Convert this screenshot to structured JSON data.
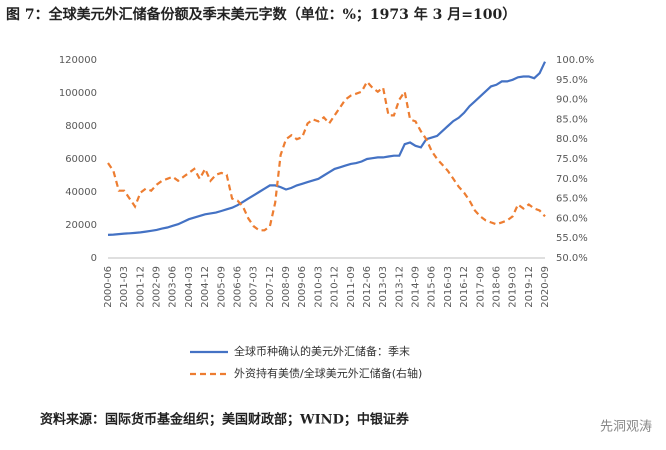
{
  "chart_data": {
    "type": "line",
    "title": "图 7：全球美元外汇储备份额及季末美元字数（单位：%；1973 年 3 月=100）",
    "source": "资料来源：国际货币基金组织；美国财政部；WIND；中银证券",
    "watermark": "先洞观涛",
    "categories": [
      "2000-06",
      null,
      null,
      "2001-03",
      null,
      null,
      "2001-12",
      null,
      null,
      "2002-09",
      null,
      null,
      "2003-06",
      null,
      null,
      "2004-03",
      null,
      null,
      "2004-12",
      null,
      null,
      "2005-09",
      null,
      null,
      "2006-06",
      null,
      null,
      "2007-03",
      null,
      null,
      "2007-12",
      null,
      null,
      "2008-09",
      null,
      null,
      "2009-06",
      null,
      null,
      "2010-03",
      null,
      null,
      "2010-12",
      null,
      null,
      "2011-09",
      null,
      null,
      "2012-06",
      null,
      null,
      "2013-03",
      null,
      null,
      "2013-12",
      null,
      null,
      "2014-09",
      null,
      null,
      "2015-06",
      null,
      null,
      "2016-03",
      null,
      null,
      "2016-12",
      null,
      null,
      "2017-09",
      null,
      null,
      "2018-06",
      null,
      null,
      "2019-03",
      null,
      null,
      "2019-12",
      null,
      null,
      "2020-09"
    ],
    "series": [
      {
        "name": "全球币种确认的美元外汇储备：季末",
        "color": "#4472c4",
        "dash": false,
        "values": [
          14000,
          14200,
          14500,
          14800,
          15000,
          15200,
          15500,
          16000,
          16500,
          17000,
          17800,
          18500,
          19500,
          20500,
          22000,
          23500,
          24500,
          25500,
          26500,
          27000,
          27500,
          28500,
          29500,
          30500,
          32000,
          34000,
          36000,
          38000,
          40000,
          42000,
          44000,
          44000,
          43000,
          41500,
          42500,
          44000,
          45000,
          46000,
          47000,
          48000,
          50000,
          52000,
          54000,
          55000,
          56000,
          57000,
          57500,
          58500,
          60000,
          60500,
          61000,
          61000,
          61500,
          62000,
          62000,
          69000,
          70000,
          68000,
          67000,
          72000,
          73000,
          74000,
          77000,
          80000,
          83000,
          85000,
          88000,
          92000,
          95000,
          98000,
          101000,
          104000,
          105000,
          107000,
          107000,
          108000,
          109500,
          110000,
          110000,
          109000,
          112000,
          119000
        ]
      },
      {
        "name": "外资持有美债/全球美元外汇储备(右轴)",
        "color": "#ed7d31",
        "dash": true,
        "axis": "y2",
        "values": [
          74,
          72,
          67,
          67,
          65,
          63,
          66.5,
          67.5,
          67,
          68.5,
          69.5,
          70,
          70.5,
          69.5,
          70.5,
          71.5,
          72.5,
          70,
          72.5,
          69.5,
          71,
          71.5,
          71,
          65,
          64.5,
          63,
          60,
          58,
          57,
          57,
          58,
          64,
          76,
          80,
          81,
          80,
          80.5,
          84,
          85,
          84.5,
          85.5,
          84,
          86,
          88,
          90,
          91,
          91.5,
          92,
          94.5,
          93,
          92,
          93,
          86,
          86,
          90,
          92,
          85,
          84.5,
          82,
          80,
          77,
          75,
          73.5,
          72,
          70,
          68,
          66.5,
          64.5,
          62,
          60.5,
          59.5,
          59,
          58.5,
          59,
          59.5,
          60.5,
          63.5,
          62.5,
          63.5,
          62.5,
          62,
          60.5
        ]
      }
    ],
    "ylim": [
      0,
      120000
    ],
    "yticks": [
      0,
      20000,
      40000,
      60000,
      80000,
      100000,
      120000
    ],
    "y2lim": [
      50,
      100
    ],
    "y2ticks": [
      {
        "value": 50,
        "label": "50.0%"
      },
      {
        "value": 55,
        "label": "55.0%"
      },
      {
        "value": 60,
        "label": "60.0%"
      },
      {
        "value": 65,
        "label": "65.0%"
      },
      {
        "value": 70,
        "label": "70.0%"
      },
      {
        "value": 75,
        "label": "75.0%"
      },
      {
        "value": 80,
        "label": "80.0%"
      },
      {
        "value": 85,
        "label": "85.0%"
      },
      {
        "value": 90,
        "label": "90.0%"
      },
      {
        "value": 95,
        "label": "95.0%"
      },
      {
        "value": 100,
        "label": "100.0%"
      }
    ],
    "grid": false
  }
}
